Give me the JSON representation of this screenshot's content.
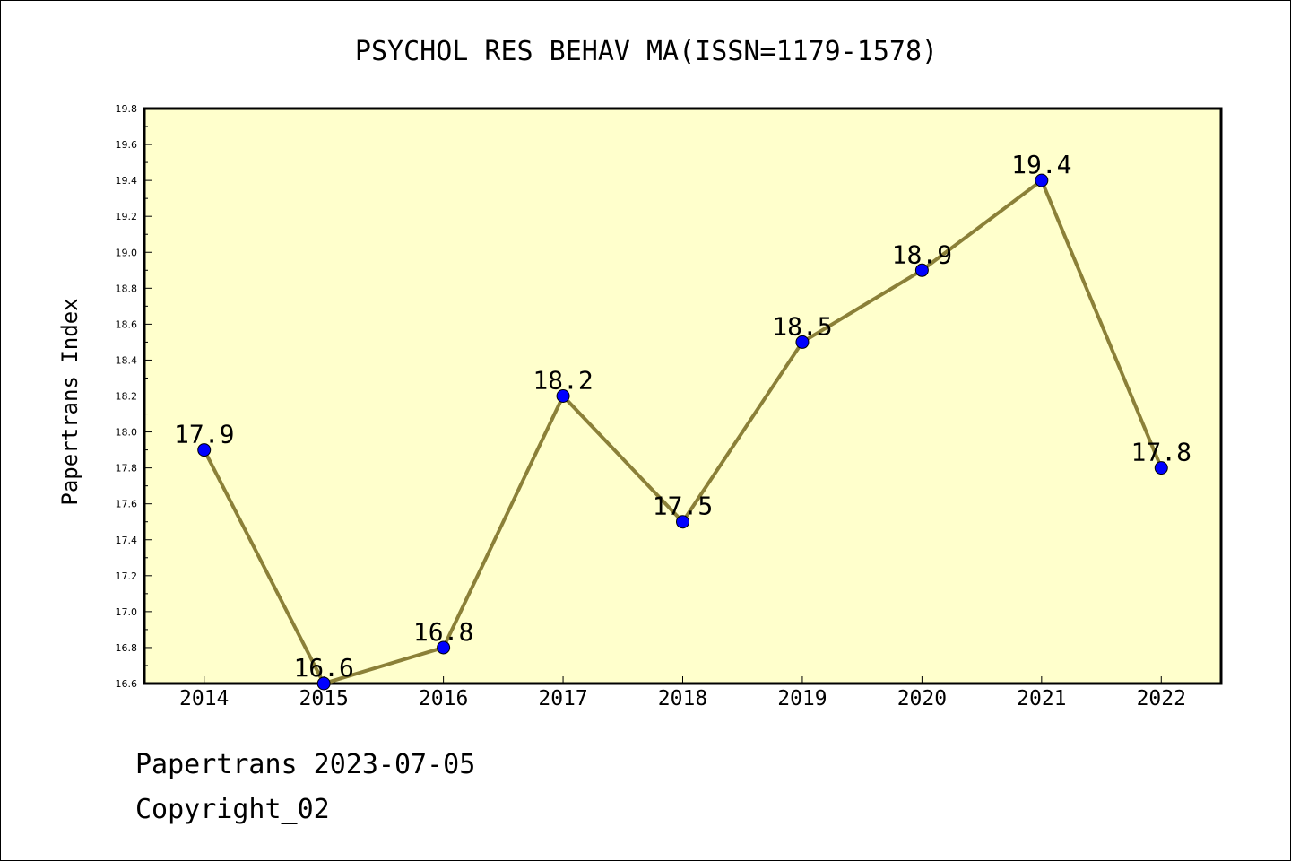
{
  "chart_data": {
    "type": "line",
    "title": "PSYCHOL RES BEHAV MA(ISSN=1179-1578)",
    "xlabel": "",
    "ylabel": "Papertrans Index",
    "categories": [
      "2014",
      "2015",
      "2016",
      "2017",
      "2018",
      "2019",
      "2020",
      "2021",
      "2022"
    ],
    "series": [
      {
        "values": [
          17.9,
          16.6,
          16.8,
          18.2,
          17.5,
          18.5,
          18.9,
          19.4,
          17.8
        ]
      }
    ],
    "data_labels": [
      "17.9",
      "16.6",
      "16.8",
      "18.2",
      "17.5",
      "18.5",
      "18.9",
      "19.4",
      "17.8"
    ],
    "ylim": [
      16.6,
      19.8
    ],
    "yticks": [
      "16.6",
      "16.8",
      "17.0",
      "17.2",
      "17.4",
      "17.6",
      "17.8",
      "18.0",
      "18.2",
      "18.4",
      "18.6",
      "18.8",
      "19.0",
      "19.2",
      "19.4",
      "19.6",
      "19.8"
    ],
    "grid": false,
    "legend": "none",
    "colors": {
      "plot_background": "#ffffcc",
      "line": "#8b8038",
      "marker": "#0000ff",
      "axis": "#000000"
    }
  },
  "footer": {
    "line1": "Papertrans 2023-07-05",
    "line2": "Copyright_02"
  }
}
